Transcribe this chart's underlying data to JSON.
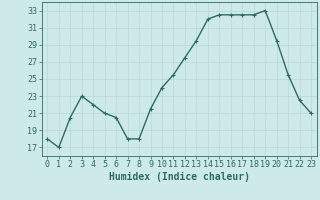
{
  "x": [
    0,
    1,
    2,
    3,
    4,
    5,
    6,
    7,
    8,
    9,
    10,
    11,
    12,
    13,
    14,
    15,
    16,
    17,
    18,
    19,
    20,
    21,
    22,
    23
  ],
  "y": [
    18,
    17,
    20.5,
    23,
    22,
    21,
    20.5,
    18,
    18,
    21.5,
    24,
    25.5,
    27.5,
    29.5,
    32,
    32.5,
    32.5,
    32.5,
    32.5,
    33,
    29.5,
    25.5,
    22.5,
    21
  ],
  "bg_color": "#ceeae8",
  "line_color": "#2e6b5e",
  "marker": "+",
  "xlabel": "Humidex (Indice chaleur)",
  "ylim": [
    16,
    34
  ],
  "yticks": [
    17,
    19,
    21,
    23,
    25,
    27,
    29,
    31,
    33
  ],
  "xlim": [
    -0.5,
    23.5
  ],
  "xticks": [
    0,
    1,
    2,
    3,
    4,
    5,
    6,
    7,
    8,
    9,
    10,
    11,
    12,
    13,
    14,
    15,
    16,
    17,
    18,
    19,
    20,
    21,
    22,
    23
  ],
  "grid_color": "#b8d8d4",
  "xlabel_fontsize": 7,
  "tick_fontsize": 6,
  "line_width": 1.0,
  "marker_size": 3,
  "fig_width": 3.2,
  "fig_height": 2.0,
  "dpi": 100
}
